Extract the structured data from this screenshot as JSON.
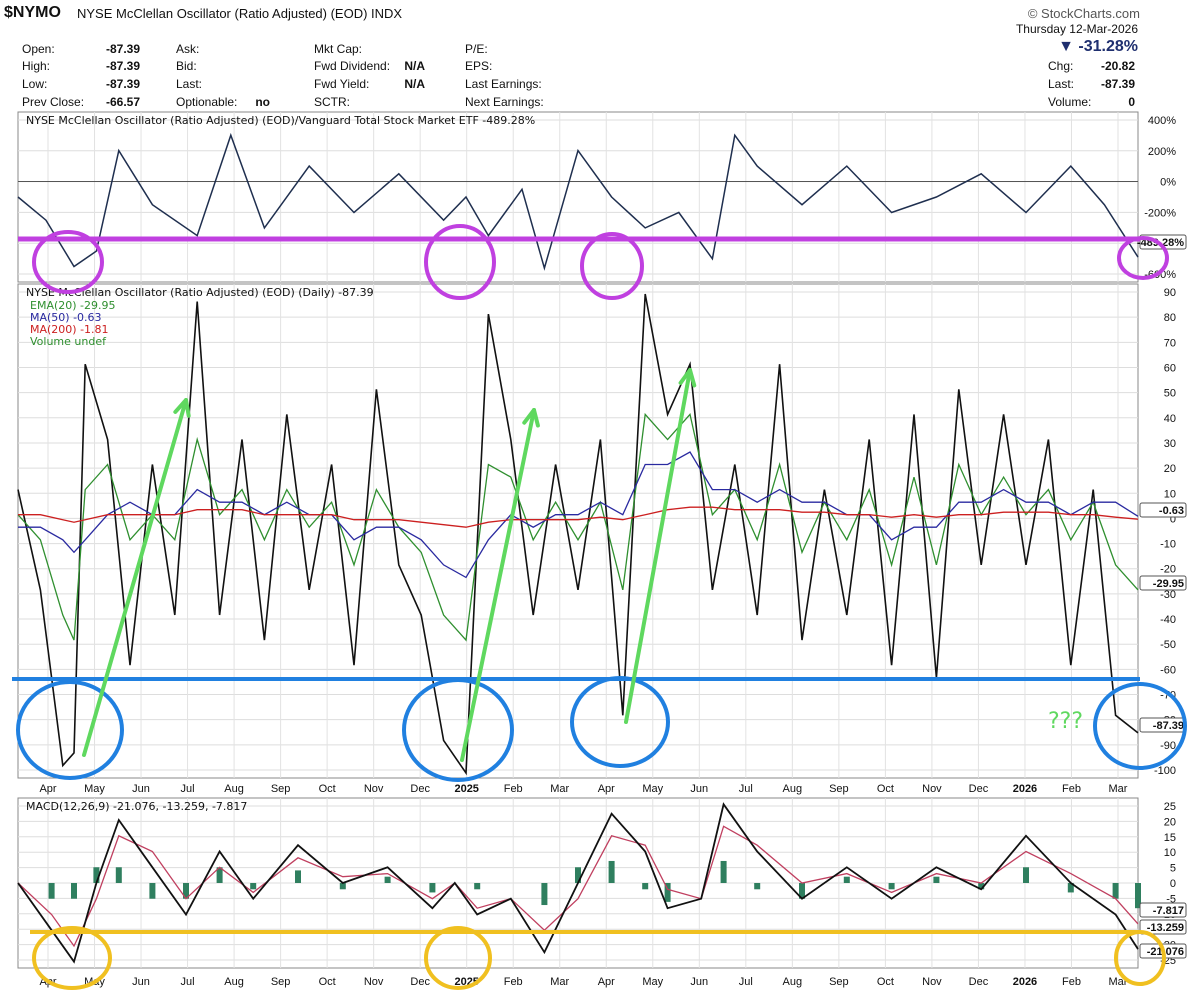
{
  "header": {
    "symbol": "$NYMO",
    "name": "NYSE McClellan Oscillator (Ratio Adjusted) (EOD)",
    "exchange": "INDX",
    "watermark": "© StockCharts.com",
    "date": "Thursday  12-Mar-2026",
    "change_pct": "▼ -31.28%",
    "quote_cols": [
      [
        {
          "label": "Open:",
          "value": "-87.39"
        },
        {
          "label": "High:",
          "value": "-87.39"
        },
        {
          "label": "Low:",
          "value": "-87.39"
        },
        {
          "label": "Prev Close:",
          "value": "-66.57"
        }
      ],
      [
        {
          "label": "Ask:",
          "value": ""
        },
        {
          "label": "Bid:",
          "value": ""
        },
        {
          "label": "Last:",
          "value": ""
        },
        {
          "label": "Optionable:",
          "value": "no"
        }
      ],
      [
        {
          "label": "Mkt Cap:",
          "value": ""
        },
        {
          "label": "Fwd Dividend:",
          "value": "N/A"
        },
        {
          "label": "Fwd Yield:",
          "value": "N/A"
        },
        {
          "label": "SCTR:",
          "value": ""
        }
      ],
      [
        {
          "label": "P/E:",
          "value": ""
        },
        {
          "label": "EPS:",
          "value": ""
        },
        {
          "label": "Last Earnings:",
          "value": ""
        },
        {
          "label": "Next Earnings:",
          "value": ""
        }
      ],
      [
        {
          "label": "",
          "value": ""
        },
        {
          "label": "Chg:",
          "value": "-20.82"
        },
        {
          "label": "Last:",
          "value": "-87.39"
        },
        {
          "label": "Volume:",
          "value": "0"
        }
      ]
    ]
  },
  "colors": {
    "price": "#1f2f4f",
    "oscillator": "#111111",
    "ema": "#2f8f2f",
    "ma50": "#2a2aa0",
    "ma200": "#cc2020",
    "macd_line": "#111111",
    "signal": "#c04060",
    "hist": "#2f7f5f",
    "purple": "#c040e0",
    "blue": "#2080e0",
    "green_arrow": "#5fd85f",
    "yellow": "#f0c020"
  },
  "x_labels": [
    "Apr",
    "May",
    "Jun",
    "Jul",
    "Aug",
    "Sep",
    "Oct",
    "Nov",
    "Dec",
    "2025",
    "Feb",
    "Mar",
    "Apr",
    "May",
    "Jun",
    "Jul",
    "Aug",
    "Sep",
    "Oct",
    "Nov",
    "Dec",
    "2026",
    "Feb",
    "Mar"
  ],
  "annotation_text": "???",
  "chart_data": [
    {
      "type": "line",
      "title": "NYSE McClellan Oscillator (Ratio Adjusted) (EOD)/Vanguard Total Stock Market ETF -489.28%",
      "y_ticks": [
        "400%",
        "200%",
        "0%",
        "-200%",
        "-400%",
        "-600%"
      ],
      "ylim": [
        -650,
        450
      ],
      "last_label": "-489.28%",
      "series": [
        {
          "name": "ratio",
          "x": [
            0,
            0.025,
            0.05,
            0.07,
            0.09,
            0.12,
            0.16,
            0.19,
            0.22,
            0.26,
            0.3,
            0.34,
            0.38,
            0.4,
            0.42,
            0.45,
            0.47,
            0.5,
            0.53,
            0.56,
            0.59,
            0.62,
            0.64,
            0.66,
            0.7,
            0.74,
            0.78,
            0.82,
            0.86,
            0.9,
            0.94,
            0.97,
            1
          ],
          "values": [
            -100,
            -250,
            -550,
            -450,
            200,
            -150,
            -350,
            300,
            -300,
            100,
            -200,
            50,
            -250,
            -100,
            -350,
            -50,
            -560,
            200,
            -100,
            -300,
            -200,
            -500,
            300,
            100,
            -150,
            100,
            -200,
            -100,
            50,
            -200,
            100,
            -150,
            -489
          ]
        }
      ]
    },
    {
      "type": "line",
      "title": "NYSE McClellan Oscillator (Ratio Adjusted) (EOD) (Daily) -87.39",
      "legend": [
        "EMA(20) -29.95",
        "MA(50) -0.63",
        "MA(200) -1.81",
        "Volume undef"
      ],
      "y_ticks": [
        "90",
        "80",
        "70",
        "60",
        "50",
        "40",
        "30",
        "20",
        "10",
        "0",
        "-10",
        "-20",
        "-30",
        "-40",
        "-50",
        "-60",
        "-70",
        "-80",
        "-90",
        "-100"
      ],
      "ylim": [
        -105,
        92
      ],
      "last_labels": [
        "-0.63",
        "-29.95",
        "-87.39"
      ],
      "series": [
        {
          "name": "NYMO",
          "x": [
            0,
            0.02,
            0.04,
            0.05,
            0.06,
            0.08,
            0.1,
            0.12,
            0.14,
            0.16,
            0.18,
            0.2,
            0.22,
            0.24,
            0.26,
            0.28,
            0.3,
            0.32,
            0.34,
            0.36,
            0.38,
            0.4,
            0.42,
            0.44,
            0.46,
            0.48,
            0.5,
            0.52,
            0.54,
            0.56,
            0.58,
            0.6,
            0.62,
            0.64,
            0.66,
            0.68,
            0.7,
            0.72,
            0.74,
            0.76,
            0.78,
            0.8,
            0.82,
            0.84,
            0.86,
            0.88,
            0.9,
            0.92,
            0.94,
            0.96,
            0.98,
            1
          ],
          "values": [
            10,
            -30,
            -100,
            -95,
            60,
            30,
            -60,
            20,
            -40,
            85,
            -40,
            30,
            -50,
            40,
            -30,
            20,
            -60,
            50,
            -20,
            -40,
            -90,
            -103,
            80,
            30,
            -40,
            20,
            -30,
            30,
            -80,
            88,
            40,
            60,
            -30,
            20,
            -40,
            60,
            -50,
            10,
            -40,
            30,
            -60,
            40,
            -65,
            50,
            -20,
            40,
            -20,
            30,
            -60,
            10,
            -80,
            -87
          ]
        },
        {
          "name": "EMA(20)",
          "values": [
            0,
            -10,
            -40,
            -50,
            10,
            20,
            -10,
            0,
            -10,
            30,
            0,
            10,
            -10,
            10,
            -5,
            5,
            -20,
            10,
            -5,
            -15,
            -40,
            -50,
            20,
            15,
            -10,
            5,
            -10,
            5,
            -30,
            40,
            30,
            40,
            0,
            10,
            -10,
            20,
            -15,
            5,
            -10,
            10,
            -20,
            15,
            -20,
            20,
            0,
            15,
            0,
            10,
            -10,
            5,
            -20,
            -30
          ]
        },
        {
          "name": "MA(50)",
          "values": [
            -5,
            -5,
            -10,
            -15,
            -10,
            0,
            5,
            0,
            0,
            10,
            5,
            5,
            0,
            5,
            0,
            0,
            -10,
            -5,
            -5,
            -10,
            -20,
            -25,
            -10,
            0,
            -5,
            0,
            0,
            5,
            0,
            20,
            20,
            25,
            10,
            10,
            5,
            10,
            5,
            5,
            0,
            0,
            -10,
            -5,
            -5,
            5,
            5,
            10,
            5,
            5,
            0,
            5,
            5,
            -0.63
          ]
        },
        {
          "name": "MA(200)",
          "values": [
            0,
            0,
            -2,
            -3,
            -2,
            0,
            0,
            0,
            0,
            2,
            2,
            2,
            0,
            0,
            0,
            0,
            -2,
            -2,
            -2,
            -3,
            -4,
            -5,
            -3,
            -2,
            -2,
            -2,
            -2,
            -1,
            -2,
            0,
            2,
            3,
            3,
            2,
            2,
            2,
            1,
            1,
            0,
            0,
            -1,
            0,
            -1,
            0,
            0,
            1,
            1,
            1,
            0,
            0,
            -1,
            -1.81
          ]
        }
      ]
    },
    {
      "type": "line",
      "title": "MACD(12,26,9) -21.076, -13.259, -7.817",
      "y_ticks": [
        "25",
        "20",
        "15",
        "10",
        "5",
        "0",
        "-5",
        "-10",
        "-15",
        "-20",
        "-25"
      ],
      "ylim": [
        -27,
        27
      ],
      "last_labels": [
        "-7.817",
        "-13.259",
        "-21.076"
      ],
      "series": [
        {
          "name": "MACD",
          "x": [
            0,
            0.03,
            0.05,
            0.07,
            0.09,
            0.12,
            0.15,
            0.18,
            0.21,
            0.25,
            0.29,
            0.33,
            0.37,
            0.39,
            0.41,
            0.44,
            0.47,
            0.5,
            0.53,
            0.56,
            0.58,
            0.61,
            0.63,
            0.66,
            0.7,
            0.74,
            0.78,
            0.82,
            0.86,
            0.9,
            0.94,
            0.98,
            1
          ],
          "values": [
            0,
            -15,
            -25,
            0,
            20,
            5,
            -10,
            10,
            -5,
            12,
            0,
            5,
            -8,
            0,
            -10,
            -5,
            -22,
            0,
            22,
            10,
            -8,
            -5,
            25,
            10,
            -5,
            5,
            -5,
            5,
            -2,
            15,
            0,
            -10,
            -21
          ]
        },
        {
          "name": "Signal",
          "values": [
            0,
            -10,
            -20,
            -5,
            15,
            10,
            -5,
            5,
            -3,
            8,
            2,
            3,
            -5,
            0,
            -8,
            -5,
            -15,
            -5,
            15,
            12,
            -2,
            -5,
            18,
            12,
            0,
            3,
            -3,
            3,
            0,
            10,
            3,
            -5,
            -13
          ]
        }
      ]
    }
  ]
}
